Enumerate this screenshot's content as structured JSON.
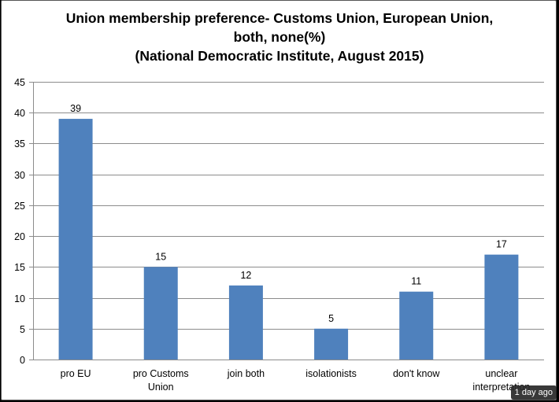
{
  "chart_data": {
    "type": "bar",
    "title_lines": [
      "Union membership preference- Customs Union, European Union,",
      "both, none(%)",
      "(National Democratic Institute, August 2015)"
    ],
    "categories": [
      [
        "pro EU"
      ],
      [
        "pro Customs",
        "Union"
      ],
      [
        "join both"
      ],
      [
        "isolationists"
      ],
      [
        "don't know"
      ],
      [
        "unclear",
        "interpretation"
      ]
    ],
    "values": [
      39,
      15,
      12,
      5,
      11,
      17
    ],
    "value_labels": [
      "39",
      "15",
      "12",
      "5",
      "11",
      "17"
    ],
    "ylim": [
      0,
      45
    ],
    "yticks": [
      "0",
      "5",
      "10",
      "15",
      "20",
      "25",
      "30",
      "35",
      "40",
      "45"
    ],
    "bar_color": "#4F81BD",
    "grid": true,
    "legend": "none"
  },
  "overlay": {
    "timestamp": "1 day ago"
  }
}
